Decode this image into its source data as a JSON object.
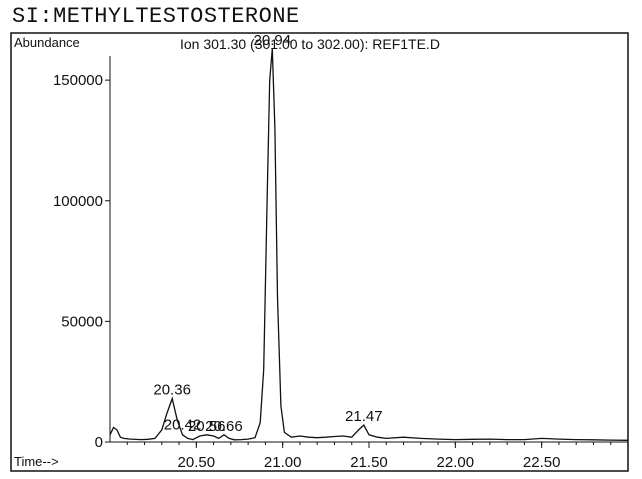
{
  "page_title": "SI:METHYLTESTOSTERONE",
  "chart_data": {
    "type": "line",
    "ylabel": "Abundance",
    "xlabel": "Time-->",
    "title": "Ion 301.30 (301.00 to 302.00): REF1TE.D",
    "xlim": [
      20.0,
      23.0
    ],
    "ylim": [
      0,
      160000
    ],
    "x_ticks": [
      "20.50",
      "21.00",
      "21.50",
      "22.00",
      "22.50"
    ],
    "y_ticks": [
      "0",
      "50000",
      "100000",
      "150000"
    ],
    "peak_labels": [
      {
        "text": "20.36",
        "x": 20.36,
        "y": 18000
      },
      {
        "text": "20.94",
        "x": 20.94,
        "y": 163000
      },
      {
        "text": "21.47",
        "x": 21.47,
        "y": 7000
      },
      {
        "text": "20.42",
        "x": 20.42,
        "y": 3500
      },
      {
        "text": "20.56",
        "x": 20.56,
        "y": 3000
      },
      {
        "text": "20.66",
        "x": 20.66,
        "y": 3000
      }
    ],
    "series": [
      {
        "x": [
          20.0,
          20.02,
          20.04,
          20.06,
          20.08,
          20.12,
          20.18,
          20.22,
          20.26,
          20.3,
          20.33,
          20.36,
          20.39,
          20.42,
          20.45,
          20.48,
          20.52,
          20.56,
          20.6,
          20.63,
          20.66,
          20.69,
          20.72,
          20.76,
          20.8,
          20.84,
          20.87,
          20.89,
          20.91,
          20.925,
          20.94,
          20.955,
          20.97,
          20.99,
          21.01,
          21.05,
          21.1,
          21.15,
          21.2,
          21.25,
          21.3,
          21.35,
          21.4,
          21.44,
          21.47,
          21.5,
          21.55,
          21.6,
          21.7,
          21.8,
          21.9,
          22.0,
          22.1,
          22.2,
          22.3,
          22.4,
          22.5,
          22.6,
          22.7,
          22.8,
          22.9,
          23.0
        ],
        "y": [
          3000,
          6000,
          5000,
          2000,
          1500,
          1200,
          1000,
          1100,
          1500,
          5000,
          12000,
          18000,
          9000,
          3000,
          1500,
          1000,
          2500,
          3000,
          2500,
          1500,
          3000,
          1500,
          900,
          1000,
          1200,
          1800,
          8000,
          30000,
          100000,
          150000,
          163000,
          130000,
          60000,
          15000,
          4000,
          2000,
          2500,
          2000,
          1800,
          2000,
          2300,
          2500,
          2000,
          5000,
          7000,
          3000,
          2000,
          1500,
          2000,
          1500,
          1200,
          1000,
          1100,
          1200,
          1000,
          1000,
          1500,
          1200,
          1000,
          900,
          800,
          700
        ]
      }
    ],
    "grid": false
  }
}
